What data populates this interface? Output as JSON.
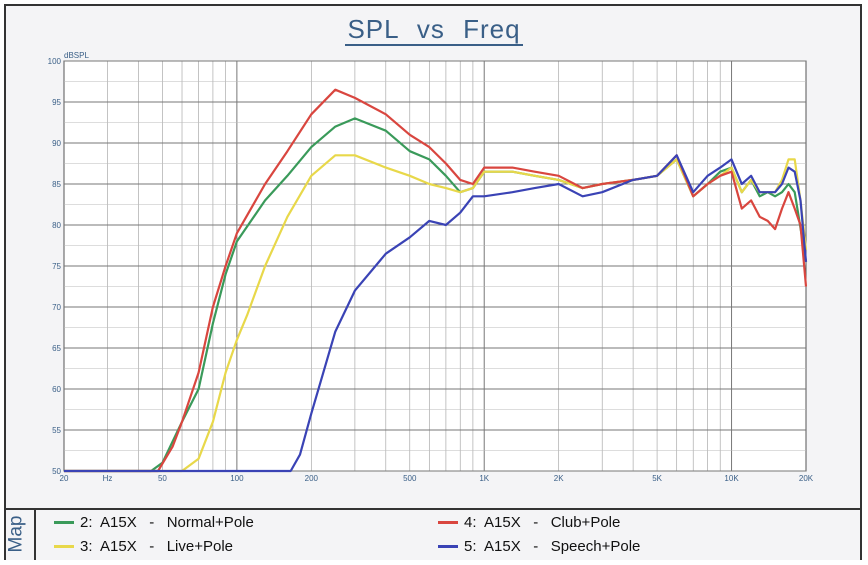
{
  "chart_data": {
    "type": "line",
    "title": "SPL vs Freq",
    "ylabel": "dBSPL",
    "xscale": "log",
    "xlim": [
      20,
      20000
    ],
    "ylim": [
      50,
      100
    ],
    "yticks": [
      50,
      55,
      60,
      65,
      70,
      75,
      80,
      85,
      90,
      95,
      100
    ],
    "xticks": [
      {
        "value": 20,
        "label": "20"
      },
      {
        "value": 30,
        "label": "Hz"
      },
      {
        "value": 50,
        "label": "50"
      },
      {
        "value": 100,
        "label": "100"
      },
      {
        "value": 200,
        "label": "200"
      },
      {
        "value": 500,
        "label": "500"
      },
      {
        "value": 1000,
        "label": "1K"
      },
      {
        "value": 2000,
        "label": "2K"
      },
      {
        "value": 5000,
        "label": "5K"
      },
      {
        "value": 10000,
        "label": "10K"
      },
      {
        "value": 20000,
        "label": "20K"
      }
    ],
    "grid": true,
    "legend_position": "bottom",
    "series": [
      {
        "name": "2:  A15X   -   Normal+Pole",
        "color": "#3a9a5a",
        "x": [
          20,
          45,
          50,
          60,
          70,
          80,
          90,
          100,
          130,
          160,
          200,
          250,
          300,
          400,
          500,
          600,
          700,
          800,
          900,
          1000,
          1300,
          1600,
          2000,
          2500,
          3000,
          4000,
          5000,
          6000,
          7000,
          8000,
          9000,
          10000,
          11000,
          12000,
          13000,
          14000,
          15000,
          16000,
          17000,
          18000,
          20000
        ],
        "y": [
          50,
          50,
          51,
          56,
          60,
          68,
          74,
          78,
          83,
          86,
          89.5,
          92,
          93,
          91.5,
          89,
          88,
          86,
          84,
          84.5,
          86.5,
          86.5,
          86,
          85.5,
          84.5,
          85,
          85.5,
          86,
          88,
          83.5,
          85,
          86.5,
          87,
          84,
          85.5,
          83.5,
          84,
          83.5,
          84,
          85,
          84,
          75.5
        ]
      },
      {
        "name": "3:  A15X   -   Live+Pole",
        "color": "#e8d84a",
        "x": [
          20,
          60,
          70,
          80,
          90,
          100,
          110,
          130,
          160,
          200,
          250,
          300,
          400,
          500,
          600,
          700,
          800,
          900,
          1000,
          1300,
          1600,
          2000,
          2500,
          3000,
          4000,
          5000,
          6000,
          7000,
          8000,
          9000,
          10000,
          11000,
          12000,
          13000,
          14000,
          15000,
          16000,
          17000,
          18000,
          19000,
          20000
        ],
        "y": [
          50,
          50,
          51.5,
          56,
          62,
          66,
          69,
          75,
          81,
          86,
          88.5,
          88.5,
          87,
          86,
          85,
          84.5,
          84,
          84.5,
          86.5,
          86.5,
          86,
          85.5,
          84.5,
          85,
          85.5,
          86,
          88,
          83.5,
          85,
          86,
          87,
          84,
          85.5,
          84,
          84,
          84,
          85.5,
          88,
          88,
          83,
          77
        ]
      },
      {
        "name": "4:  A15X   -   Club+Pole",
        "color": "#d9463f",
        "x": [
          20,
          48,
          55,
          60,
          70,
          80,
          90,
          100,
          130,
          160,
          200,
          250,
          300,
          400,
          500,
          600,
          700,
          800,
          900,
          1000,
          1300,
          1600,
          2000,
          2500,
          3000,
          4000,
          5000,
          6000,
          7000,
          8000,
          9000,
          10000,
          11000,
          12000,
          13000,
          14000,
          15000,
          16000,
          17000,
          18000,
          19000,
          20000
        ],
        "y": [
          50,
          50,
          53,
          56,
          62,
          70,
          75,
          79,
          85,
          89,
          93.5,
          96.5,
          95.5,
          93.5,
          91,
          89.5,
          87.5,
          85.5,
          85,
          87,
          87,
          86.5,
          86,
          84.5,
          85,
          85.5,
          86,
          88.5,
          83.5,
          85,
          86,
          86.5,
          82,
          83,
          81,
          80.5,
          79.5,
          82,
          84,
          82,
          80,
          72.5
        ]
      },
      {
        "name": "5:  A15X   -   Speech+Pole",
        "color": "#3a43b5",
        "x": [
          20,
          165,
          180,
          200,
          250,
          300,
          400,
          500,
          600,
          700,
          800,
          900,
          1000,
          1300,
          1600,
          2000,
          2500,
          3000,
          4000,
          5000,
          6000,
          7000,
          8000,
          9000,
          10000,
          11000,
          12000,
          13000,
          14000,
          15000,
          16000,
          17000,
          18000,
          19000,
          20000
        ],
        "y": [
          50,
          50,
          52,
          57,
          67,
          72,
          76.5,
          78.5,
          80.5,
          80,
          81.5,
          83.5,
          83.5,
          84,
          84.5,
          85,
          83.5,
          84,
          85.5,
          86,
          88.5,
          84,
          86,
          87,
          88,
          85,
          86,
          84,
          84,
          84,
          85,
          87,
          86.5,
          83,
          75.5
        ]
      }
    ]
  },
  "legend": {
    "tab_label": "Map",
    "items": [
      {
        "label": "2:  A15X   -   Normal+Pole",
        "color": "#3a9a5a"
      },
      {
        "label": "3:  A15X   -   Live+Pole",
        "color": "#e8d84a"
      },
      {
        "label": "4:  A15X   -   Club+Pole",
        "color": "#d9463f"
      },
      {
        "label": "5:  A15X   -   Speech+Pole",
        "color": "#3a43b5"
      }
    ]
  }
}
